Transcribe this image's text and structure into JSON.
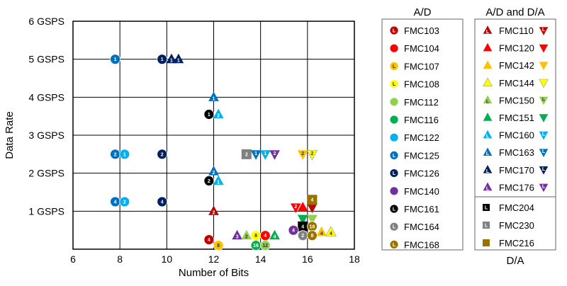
{
  "chart_data": {
    "type": "scatter",
    "xlabel": "Number of Bits",
    "ylabel": "Data Rate",
    "xlim": [
      6,
      18
    ],
    "ylim": [
      0,
      6
    ],
    "x_ticks": [
      "6",
      "8",
      "10",
      "12",
      "14",
      "16",
      "18"
    ],
    "y_ticks": [
      "1 GSPS",
      "2 GSPS",
      "3 GSPS",
      "4 GSPS",
      "5 GSPS",
      "6 GSPS"
    ],
    "grid": true,
    "legend_groups": {
      "ad_title": "A/D",
      "ada_title": "A/D and D/A",
      "da_title": "D/A"
    },
    "colors": {
      "FMC103": "#c00000",
      "FMC104": "#ff0000",
      "FMC107": "#ffc000",
      "FMC108": "#ffff00",
      "FMC112": "#92d050",
      "FMC116": "#00b050",
      "FMC122": "#00b0f0",
      "FMC125": "#0070c0",
      "FMC126": "#002060",
      "FMC140": "#7030a0",
      "FMC161": "#000000",
      "FMC164": "#808080",
      "FMC168": "#997300",
      "FMC110": "#c00000",
      "FMC120": "#ff0000",
      "FMC142": "#ffc000",
      "FMC144": "#ffff00",
      "FMC150": "#92d050",
      "FMC151": "#00b050",
      "FMC160": "#00b0f0",
      "FMC163": "#0070c0",
      "FMC170": "#002060",
      "FMC176": "#7030a0",
      "FMC204": "#000000",
      "FMC230": "#808080",
      "FMC216": "#997300"
    },
    "legend_ad": [
      {
        "name": "FMC103",
        "shape": "circle",
        "tag": "L"
      },
      {
        "name": "FMC104",
        "shape": "circle",
        "tag": ""
      },
      {
        "name": "FMC107",
        "shape": "circle",
        "tag": "L"
      },
      {
        "name": "FMC108",
        "shape": "circle",
        "tag": "L"
      },
      {
        "name": "FMC112",
        "shape": "circle",
        "tag": ""
      },
      {
        "name": "FMC116",
        "shape": "circle",
        "tag": ""
      },
      {
        "name": "FMC122",
        "shape": "circle",
        "tag": ""
      },
      {
        "name": "FMC125",
        "shape": "circle",
        "tag": "L"
      },
      {
        "name": "FMC126",
        "shape": "circle",
        "tag": "L"
      },
      {
        "name": "FMC140",
        "shape": "circle",
        "tag": ""
      },
      {
        "name": "FMC161",
        "shape": "circle",
        "tag": "L"
      },
      {
        "name": "FMC164",
        "shape": "circle",
        "tag": "L"
      },
      {
        "name": "FMC168",
        "shape": "circle",
        "tag": "L"
      }
    ],
    "legend_ada": [
      {
        "name": "FMC110",
        "tag": "L"
      },
      {
        "name": "FMC120",
        "tag": ""
      },
      {
        "name": "FMC142",
        "tag": ""
      },
      {
        "name": "FMC144",
        "tag": ""
      },
      {
        "name": "FMC150",
        "tag": "L"
      },
      {
        "name": "FMC151",
        "tag": ""
      },
      {
        "name": "FMC160",
        "tag": "L"
      },
      {
        "name": "FMC163",
        "tag": "L"
      },
      {
        "name": "FMC170",
        "tag": "L"
      },
      {
        "name": "FMC176",
        "tag": "L"
      }
    ],
    "legend_da": [
      {
        "name": "FMC204",
        "tag": "L"
      },
      {
        "name": "FMC230",
        "tag": "L"
      },
      {
        "name": "FMC216",
        "tag": ""
      }
    ],
    "points": [
      {
        "series": "FMC125",
        "shape": "circle",
        "label": "1",
        "x": 7.8,
        "y": 5.0
      },
      {
        "series": "FMC126",
        "shape": "circle",
        "label": "1",
        "x": 9.8,
        "y": 5.0
      },
      {
        "series": "FMC170",
        "shape": "up",
        "label": "1",
        "x": 10.2,
        "y": 5.0
      },
      {
        "series": "FMC170",
        "shape": "up",
        "label": "1",
        "x": 10.5,
        "y": 5.0
      },
      {
        "series": "FMC163",
        "shape": "up",
        "label": "1",
        "x": 12.0,
        "y": 4.0
      },
      {
        "series": "FMC161",
        "shape": "circle",
        "label": "1",
        "x": 11.8,
        "y": 3.55
      },
      {
        "series": "FMC160",
        "shape": "up",
        "label": "2",
        "x": 12.2,
        "y": 3.55
      },
      {
        "series": "FMC125",
        "shape": "circle",
        "label": "2",
        "x": 7.8,
        "y": 2.5
      },
      {
        "series": "FMC122",
        "shape": "circle",
        "label": "1",
        "x": 8.2,
        "y": 2.5
      },
      {
        "series": "FMC126",
        "shape": "circle",
        "label": "2",
        "x": 9.8,
        "y": 2.5
      },
      {
        "series": "FMC230",
        "shape": "square",
        "label": "2",
        "x": 13.4,
        "y": 2.5
      },
      {
        "series": "FMC163",
        "shape": "down",
        "label": "1",
        "x": 13.8,
        "y": 2.5
      },
      {
        "series": "FMC160",
        "shape": "down",
        "label": "1",
        "x": 14.2,
        "y": 2.5
      },
      {
        "series": "FMC176",
        "shape": "down",
        "label": "2",
        "x": 14.6,
        "y": 2.5
      },
      {
        "series": "FMC142",
        "shape": "down",
        "label": "2",
        "x": 15.8,
        "y": 2.5
      },
      {
        "series": "FMC144",
        "shape": "down",
        "label": "2",
        "x": 16.2,
        "y": 2.5
      },
      {
        "series": "FMC163",
        "shape": "up",
        "label": "2",
        "x": 12.0,
        "y": 2.05
      },
      {
        "series": "FMC161",
        "shape": "circle",
        "label": "2",
        "x": 11.8,
        "y": 1.8
      },
      {
        "series": "FMC160",
        "shape": "up",
        "label": "1",
        "x": 12.2,
        "y": 1.8
      },
      {
        "series": "FMC125",
        "shape": "circle",
        "label": "4",
        "x": 7.8,
        "y": 1.25
      },
      {
        "series": "FMC122",
        "shape": "circle",
        "label": "2",
        "x": 8.2,
        "y": 1.25
      },
      {
        "series": "FMC126",
        "shape": "circle",
        "label": "4",
        "x": 9.8,
        "y": 1.25
      },
      {
        "series": "FMC110",
        "shape": "up",
        "label": "2",
        "x": 12.0,
        "y": 1.0
      },
      {
        "series": "FMC120",
        "shape": "down",
        "label": "2",
        "x": 15.5,
        "y": 1.1
      },
      {
        "series": "FMC120",
        "shape": "up",
        "label": "",
        "x": 15.8,
        "y": 1.1
      },
      {
        "series": "FMC110",
        "shape": "down",
        "label": "",
        "x": 16.2,
        "y": 1.1
      },
      {
        "series": "FMC216",
        "shape": "square",
        "label": "4",
        "x": 16.2,
        "y": 1.3
      },
      {
        "series": "FMC151",
        "shape": "down",
        "label": "",
        "x": 15.8,
        "y": 0.8
      },
      {
        "series": "FMC150",
        "shape": "down",
        "label": "",
        "x": 16.2,
        "y": 0.8
      },
      {
        "series": "FMC204",
        "shape": "square",
        "label": "4",
        "x": 15.8,
        "y": 0.6
      },
      {
        "series": "FMC168",
        "shape": "circle",
        "label": "16",
        "x": 16.2,
        "y": 0.6
      },
      {
        "series": "FMC142",
        "shape": "up",
        "label": "4",
        "x": 16.6,
        "y": 0.45
      },
      {
        "series": "FMC144",
        "shape": "up",
        "label": "4",
        "x": 17.0,
        "y": 0.45
      },
      {
        "series": "FMC140",
        "shape": "circle",
        "label": "4",
        "x": 15.4,
        "y": 0.5
      },
      {
        "series": "FMC164",
        "shape": "circle",
        "label": "2",
        "x": 15.8,
        "y": 0.36
      },
      {
        "series": "FMC168",
        "shape": "circle",
        "label": "8",
        "x": 16.2,
        "y": 0.36
      },
      {
        "series": "FMC176",
        "shape": "up",
        "label": "3",
        "x": 13.0,
        "y": 0.36
      },
      {
        "series": "FMC150",
        "shape": "up",
        "label": "2",
        "x": 13.4,
        "y": 0.36
      },
      {
        "series": "FMC108",
        "shape": "circle",
        "label": "8",
        "x": 13.8,
        "y": 0.36
      },
      {
        "series": "FMC104",
        "shape": "circle",
        "label": "4",
        "x": 14.2,
        "y": 0.36
      },
      {
        "series": "FMC151",
        "shape": "up",
        "label": "4",
        "x": 14.6,
        "y": 0.36
      },
      {
        "series": "FMC103",
        "shape": "circle",
        "label": "4",
        "x": 11.8,
        "y": 0.25
      },
      {
        "series": "FMC107",
        "shape": "circle",
        "label": "8",
        "x": 12.2,
        "y": 0.1
      },
      {
        "series": "FMC116",
        "shape": "circle",
        "label": "16",
        "x": 13.8,
        "y": 0.1
      },
      {
        "series": "FMC112",
        "shape": "circle",
        "label": "12",
        "x": 14.2,
        "y": 0.1
      }
    ]
  }
}
